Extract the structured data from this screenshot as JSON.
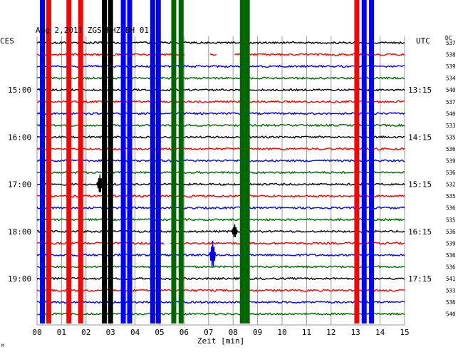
{
  "header": "Aug 2,2011  ZGS HHZ BH 01",
  "left_timezone": "CES",
  "right_timezone": "UTC",
  "dc_label": "DC",
  "footer_mark": "M",
  "chart_data": {
    "type": "line",
    "title": "Aug 2,2011  ZGS HHZ BH 01",
    "xlabel": "Zeit [min]",
    "xlim": [
      0,
      15
    ],
    "x_ticks": [
      "00",
      "01",
      "02",
      "03",
      "04",
      "05",
      "06",
      "07",
      "08",
      "09",
      "10",
      "11",
      "12",
      "13",
      "14",
      "15"
    ],
    "grid": true,
    "left_time_labels": [
      {
        "label": "15:00",
        "trace": 4
      },
      {
        "label": "16:00",
        "trace": 8
      },
      {
        "label": "17:00",
        "trace": 12
      },
      {
        "label": "18:00",
        "trace": 16
      },
      {
        "label": "19:00",
        "trace": 20
      }
    ],
    "right_time_labels": [
      {
        "label": "13:15",
        "trace": 4
      },
      {
        "label": "14:15",
        "trace": 8
      },
      {
        "label": "15:15",
        "trace": 12
      },
      {
        "label": "16:15",
        "trace": 16
      },
      {
        "label": "17:15",
        "trace": 20
      }
    ],
    "traces": [
      {
        "color": "#000000",
        "dc": "537"
      },
      {
        "color": "#ff0000",
        "dc": "538"
      },
      {
        "color": "#0000ff",
        "dc": "539"
      },
      {
        "color": "#006600",
        "dc": "534"
      },
      {
        "color": "#000000",
        "dc": "540"
      },
      {
        "color": "#ff0000",
        "dc": "537"
      },
      {
        "color": "#0000ff",
        "dc": "540"
      },
      {
        "color": "#006600",
        "dc": "533"
      },
      {
        "color": "#000000",
        "dc": "535"
      },
      {
        "color": "#ff0000",
        "dc": "536"
      },
      {
        "color": "#0000ff",
        "dc": "539"
      },
      {
        "color": "#006600",
        "dc": "536"
      },
      {
        "color": "#000000",
        "dc": "532"
      },
      {
        "color": "#ff0000",
        "dc": "535"
      },
      {
        "color": "#0000ff",
        "dc": "536"
      },
      {
        "color": "#006600",
        "dc": "535"
      },
      {
        "color": "#000000",
        "dc": "536"
      },
      {
        "color": "#ff0000",
        "dc": "539"
      },
      {
        "color": "#0000ff",
        "dc": "536"
      },
      {
        "color": "#006600",
        "dc": "536"
      },
      {
        "color": "#000000",
        "dc": "541"
      },
      {
        "color": "#ff0000",
        "dc": "533"
      },
      {
        "color": "#0000ff",
        "dc": "536"
      },
      {
        "color": "#006600",
        "dc": "540"
      }
    ],
    "vertical_bursts": [
      {
        "x": 0.22,
        "color": "#0000ff"
      },
      {
        "x": 0.48,
        "color": "#ff0000"
      },
      {
        "x": 1.3,
        "color": "#ff0000"
      },
      {
        "x": 1.78,
        "color": "#ff0000"
      },
      {
        "x": 2.75,
        "color": "#000000"
      },
      {
        "x": 3.0,
        "color": "#000000"
      },
      {
        "x": 3.52,
        "color": "#0000ff"
      },
      {
        "x": 3.78,
        "color": "#0000ff"
      },
      {
        "x": 4.72,
        "color": "#0000ff"
      },
      {
        "x": 4.95,
        "color": "#0000ff"
      },
      {
        "x": 5.58,
        "color": "#006600"
      },
      {
        "x": 5.88,
        "color": "#006600"
      },
      {
        "x": 8.38,
        "color": "#006600"
      },
      {
        "x": 8.58,
        "color": "#006600"
      },
      {
        "x": 13.05,
        "color": "#ff0000"
      },
      {
        "x": 13.35,
        "color": "#0000ff"
      },
      {
        "x": 13.65,
        "color": "#0000ff"
      }
    ],
    "gaps": [
      {
        "trace": 1,
        "x0": 6.05,
        "x1": 7.05
      },
      {
        "trace": 1,
        "x0": 7.35,
        "x1": 8.05
      },
      {
        "trace": 17,
        "x0": 5.2,
        "x1": 5.45
      }
    ],
    "spikes": [
      {
        "trace": 12,
        "x": 2.55,
        "amp": 14,
        "color": "#000000"
      },
      {
        "trace": 18,
        "x": 7.15,
        "amp": 20,
        "color": "#0000ff"
      },
      {
        "trace": 16,
        "x": 8.05,
        "amp": 10,
        "color": "#000000"
      }
    ]
  }
}
